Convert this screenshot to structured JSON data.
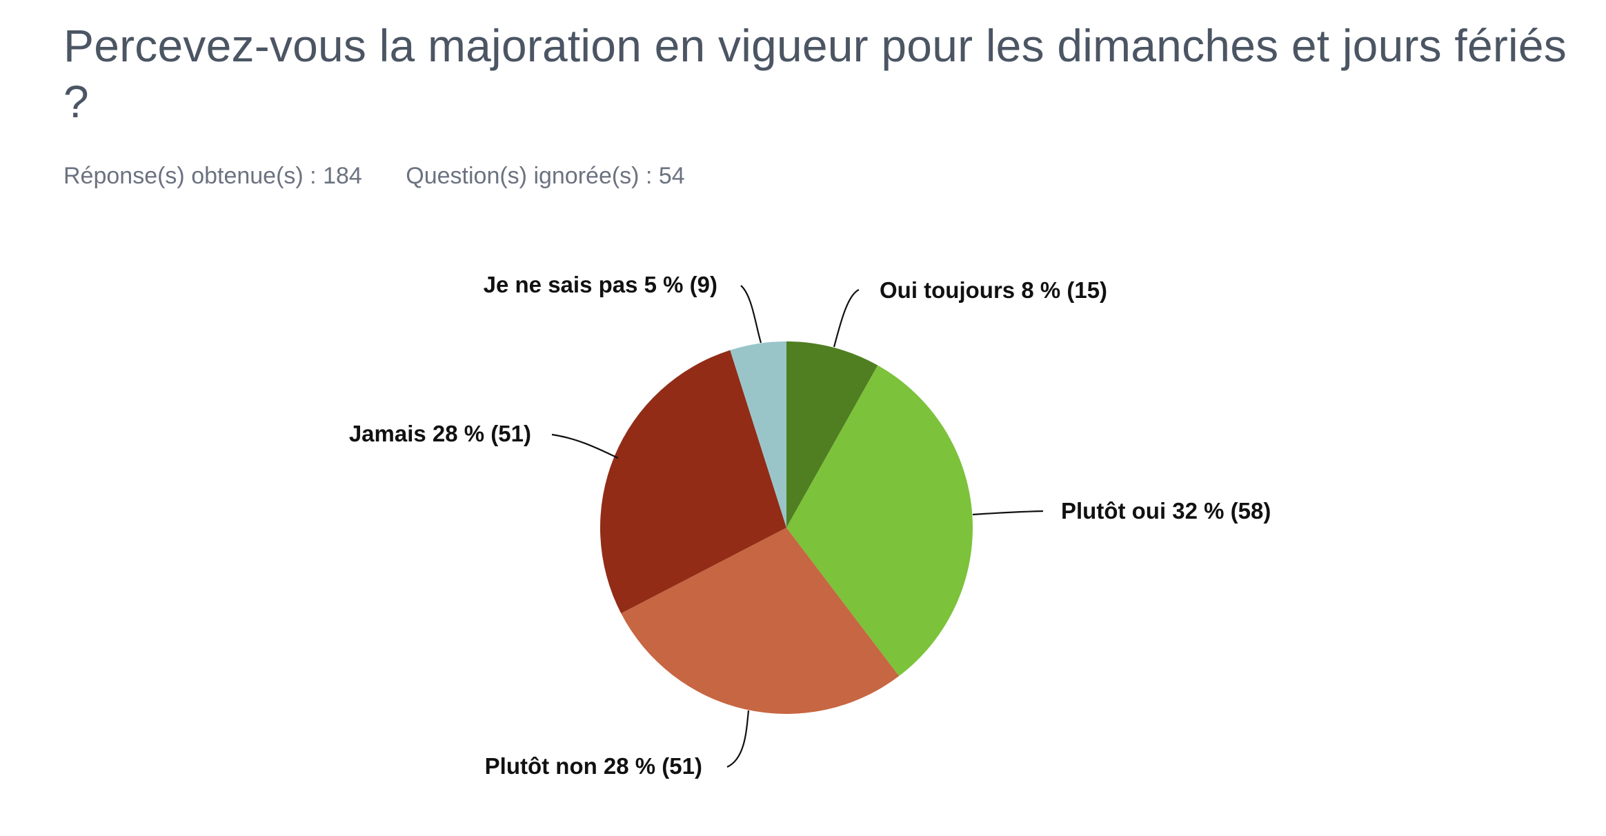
{
  "header": {
    "title": "Percevez-vous la majoration en vigueur pour les dimanches et jours fériés ?",
    "answered": "Réponse(s) obtenue(s) : 184",
    "skipped": "Question(s) ignorée(s) : 54"
  },
  "chart_data": {
    "type": "pie",
    "start_angle_deg": 0,
    "direction": "clockwise",
    "slices": [
      {
        "label": "Oui toujours 8 % (15)",
        "value": 15,
        "percent": 8,
        "color": "#507f22"
      },
      {
        "label": "Plutôt oui 32 % (58)",
        "value": 58,
        "percent": 32,
        "color": "#7cc23a"
      },
      {
        "label": "Plutôt non 28 % (51)",
        "value": 51,
        "percent": 28,
        "color": "#c76642"
      },
      {
        "label": "Jamais 28 % (51)",
        "value": 51,
        "percent": 28,
        "color": "#922c17"
      },
      {
        "label": "Je ne sais pas 5 % (9)",
        "value": 9,
        "percent": 5,
        "color": "#99c5c9"
      }
    ]
  }
}
